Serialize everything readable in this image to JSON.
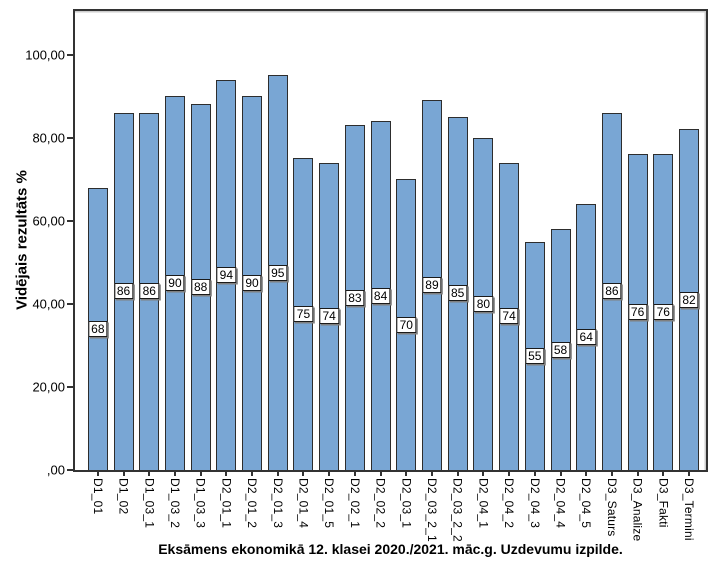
{
  "chart_data": {
    "type": "bar",
    "title": "Eksāmens ekonomikā 12. klasei 2020./2021. māc.g. Uzdevumu izpilde.",
    "ylabel": "Vidējais rezultāts %",
    "xlabel": "",
    "categories": [
      "D1_01",
      "D1_02",
      "D1_03_1",
      "D1_03_2",
      "D1_03_3",
      "D2_01_1",
      "D2_01_2",
      "D2_01_3",
      "D2_01_4",
      "D2_01_5",
      "D2_02_1",
      "D2_02_2",
      "D2_03_1",
      "D2_03_2_1",
      "D2_03_2_2",
      "D2_04_1",
      "D2_04_2",
      "D2_04_3",
      "D2_04_4",
      "D2_04_5",
      "D3_Saturs",
      "D3_Analize",
      "D3_Fakti",
      "D3_Termini"
    ],
    "values": [
      68,
      86,
      86,
      90,
      88,
      94,
      90,
      95,
      75,
      74,
      83,
      84,
      70,
      89,
      85,
      80,
      74,
      55,
      58,
      64,
      86,
      76,
      76,
      82
    ],
    "data_labels": [
      "68",
      "86",
      "86",
      "90",
      "88",
      "94",
      "90",
      "95",
      "75",
      "74",
      "83",
      "84",
      "70",
      "89",
      "85",
      "80",
      "74",
      "55",
      "58",
      "64",
      "86",
      "76",
      "76",
      "82"
    ],
    "yticks": [
      {
        "value": 0,
        "label": ",00"
      },
      {
        "value": 20,
        "label": "20,00"
      },
      {
        "value": 40,
        "label": "40,00"
      },
      {
        "value": 60,
        "label": "60,00"
      },
      {
        "value": 80,
        "label": "80,00"
      },
      {
        "value": 100,
        "label": "100,00"
      }
    ],
    "ylim": [
      0,
      110.5
    ],
    "grid": false,
    "legend": null,
    "colors": {
      "bar_fill": "#79A6D4",
      "bar_border": "#2d2d2d",
      "frame": "#333333",
      "data_label_bg": "#FFFFFF",
      "data_label_border": "#1a1a1a",
      "text": "#000000",
      "background": "#FFFFFF"
    }
  }
}
